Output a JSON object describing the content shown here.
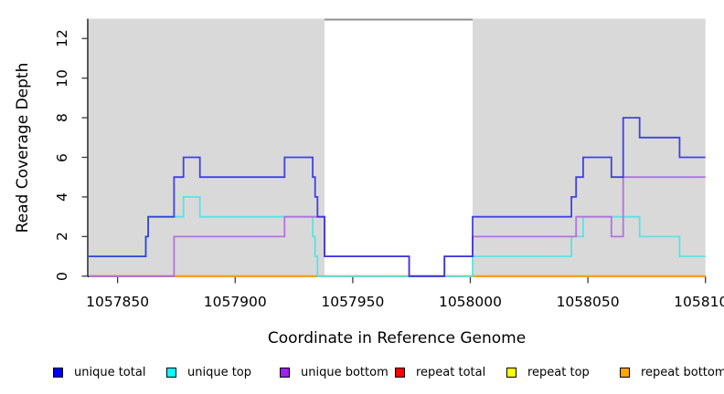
{
  "chart_data": {
    "type": "line",
    "step": true,
    "title": "",
    "xlabel": "Coordinate in Reference Genome",
    "ylabel": "Read Coverage Depth",
    "xlim": [
      1057837.7,
      1058100
    ],
    "ylim": [
      0,
      13
    ],
    "x_ticks": [
      1057850,
      1057900,
      1057950,
      1058000,
      1058050,
      1058100
    ],
    "x_tick_labels": [
      "1057850",
      "1057900",
      "1057950",
      "1058000",
      "1058050",
      "1058100"
    ],
    "y_ticks": [
      0,
      2,
      4,
      6,
      8,
      10,
      12
    ],
    "y_tick_labels": [
      "0",
      "2",
      "4",
      "6",
      "8",
      "10",
      "12"
    ],
    "grid": false,
    "legend_position": "bottom",
    "panel_background": "#d9d9d9",
    "no_data_region": {
      "x_start": 1057938,
      "x_end": 1058001,
      "fill": "#ffffff",
      "top_border_color": "#8f8f8f"
    },
    "series": [
      {
        "name": "unique total",
        "legend_color": "#0000ff",
        "line_color": "rgba(43,43,224,0.88)",
        "points": [
          [
            1057837.7,
            1
          ],
          [
            1057862,
            2
          ],
          [
            1057863,
            3
          ],
          [
            1057874,
            5
          ],
          [
            1057878,
            6
          ],
          [
            1057885,
            5
          ],
          [
            1057921,
            6
          ],
          [
            1057933,
            5
          ],
          [
            1057934,
            4
          ],
          [
            1057935,
            3
          ],
          [
            1057938,
            1
          ],
          [
            1057974,
            0
          ],
          [
            1057989,
            1
          ],
          [
            1058001,
            3
          ],
          [
            1058043,
            4
          ],
          [
            1058045,
            5
          ],
          [
            1058048,
            6
          ],
          [
            1058060,
            5
          ],
          [
            1058065,
            8
          ],
          [
            1058072,
            7
          ],
          [
            1058089,
            6
          ]
        ]
      },
      {
        "name": "unique top",
        "legend_color": "#00ffff",
        "line_color": "#5ce2e2",
        "points": [
          [
            1057837.7,
            1
          ],
          [
            1057862,
            2
          ],
          [
            1057863,
            3
          ],
          [
            1057878,
            4
          ],
          [
            1057885,
            3
          ],
          [
            1057933,
            2
          ],
          [
            1057934,
            1
          ],
          [
            1057935,
            0
          ],
          [
            1058001,
            1
          ],
          [
            1058043,
            2
          ],
          [
            1058048,
            3
          ],
          [
            1058072,
            2
          ],
          [
            1058089,
            1
          ]
        ]
      },
      {
        "name": "unique bottom",
        "legend_color": "#a020f0",
        "line_color": "#b273dc",
        "points": [
          [
            1057837.7,
            0
          ],
          [
            1057874,
            2
          ],
          [
            1057921,
            3
          ],
          [
            1057938,
            1
          ],
          [
            1057974,
            0
          ],
          [
            1057989,
            1
          ],
          [
            1058001,
            2
          ],
          [
            1058045,
            3
          ],
          [
            1058060,
            2
          ],
          [
            1058065,
            5
          ]
        ]
      },
      {
        "name": "repeat total",
        "legend_color": "#ff0000",
        "line_color": "#dd2222",
        "points": [
          [
            1057837.7,
            0
          ]
        ]
      },
      {
        "name": "repeat top",
        "legend_color": "#ffff00",
        "line_color": "#ffff00",
        "points": [
          [
            1057837.7,
            0
          ]
        ]
      },
      {
        "name": "repeat bottom",
        "legend_color": "#ffa500",
        "line_color": "#ffa500",
        "points": [
          [
            1057837.7,
            0
          ]
        ]
      }
    ],
    "zero_line_overlap_artifacts": [
      {
        "x_start": 1057837.7,
        "x_end": 1057874,
        "color": "#c758be"
      },
      {
        "x_start": 1057935,
        "x_end": 1058001,
        "color": "#8fcf8f"
      }
    ],
    "draw_order": [
      3,
      4,
      5,
      1,
      2,
      0
    ]
  },
  "legend": {
    "items": [
      {
        "label": "unique total",
        "color": "#0000ff"
      },
      {
        "label": "unique top",
        "color": "#00ffff"
      },
      {
        "label": "unique bottom",
        "color": "#a020f0"
      },
      {
        "label": "repeat total",
        "color": "#ff0000"
      },
      {
        "label": "repeat top",
        "color": "#ffff00"
      },
      {
        "label": "repeat bottom",
        "color": "#ffa500"
      }
    ]
  }
}
